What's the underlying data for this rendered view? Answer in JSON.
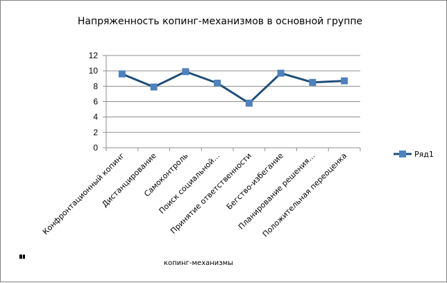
{
  "chart_data": {
    "type": "line",
    "title": "Напряженность копинг-механизмов  в основной группе",
    "xlabel": "копинг-механизмы",
    "ylabel": "",
    "categories": [
      "Конфронтационный копинг",
      "Дистанцирование",
      "Самоконтроль",
      "Поиск социальной…",
      "Принятие ответственности",
      "Бегство-избегание",
      "Планирование решения…",
      "Положительная переоценка"
    ],
    "series": [
      {
        "name": "Ряд1",
        "values": [
          9.6,
          7.9,
          9.9,
          8.4,
          5.8,
          9.7,
          8.5,
          8.7
        ],
        "color": "#1f4e79",
        "marker_color": "#4f81bd"
      }
    ],
    "ylim": [
      0,
      12
    ],
    "yticks": [
      "0",
      "2",
      "4",
      "6",
      "8",
      "10",
      "12"
    ],
    "grid": true,
    "legend": "right"
  }
}
